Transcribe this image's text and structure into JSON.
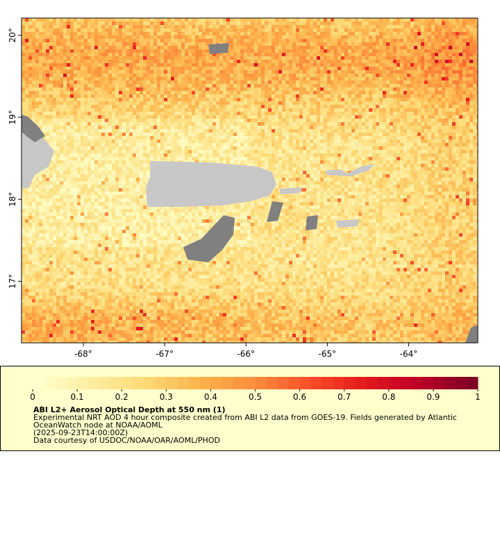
{
  "map": {
    "xlim": [
      -68.76,
      -63.15
    ],
    "ylim": [
      16.25,
      20.21
    ],
    "xticks": [
      {
        "value": -68,
        "label": "-68°"
      },
      {
        "value": -67,
        "label": "-67°"
      },
      {
        "value": -66,
        "label": "-66°"
      },
      {
        "value": -65,
        "label": "-65°"
      },
      {
        "value": -64,
        "label": "-64°"
      }
    ],
    "yticks": [
      {
        "value": 17,
        "label": "17°"
      },
      {
        "value": 18,
        "label": "18°"
      },
      {
        "value": 19,
        "label": "19°"
      },
      {
        "value": 20,
        "label": "20°"
      }
    ]
  },
  "colorbar": {
    "lim": [
      0,
      1
    ],
    "ticks": [
      0,
      0.1,
      0.2,
      0.3,
      0.4,
      0.5,
      0.6,
      0.7,
      0.8,
      0.9,
      1
    ],
    "colors": [
      "#ffffcc",
      "#ffeda0",
      "#fed976",
      "#feb24c",
      "#fd8d3c",
      "#fc4e2a",
      "#e31a1c",
      "#bd0026",
      "#800026"
    ]
  },
  "legend": {
    "title": "ABI L2+ Aerosol Optical Depth at 550 nm (1)",
    "lines": [
      "Experimental NRT AOD 4 hour composite created from ABI L2 data from GOES-19. Fields generated by Atlantic",
      "OceanWatch node at NOAA/AOML",
      "(2025-09-23T14:00:00Z)",
      "Data courtesy of USDOC/NOAA/OAR/AOML/PHOD"
    ]
  }
}
